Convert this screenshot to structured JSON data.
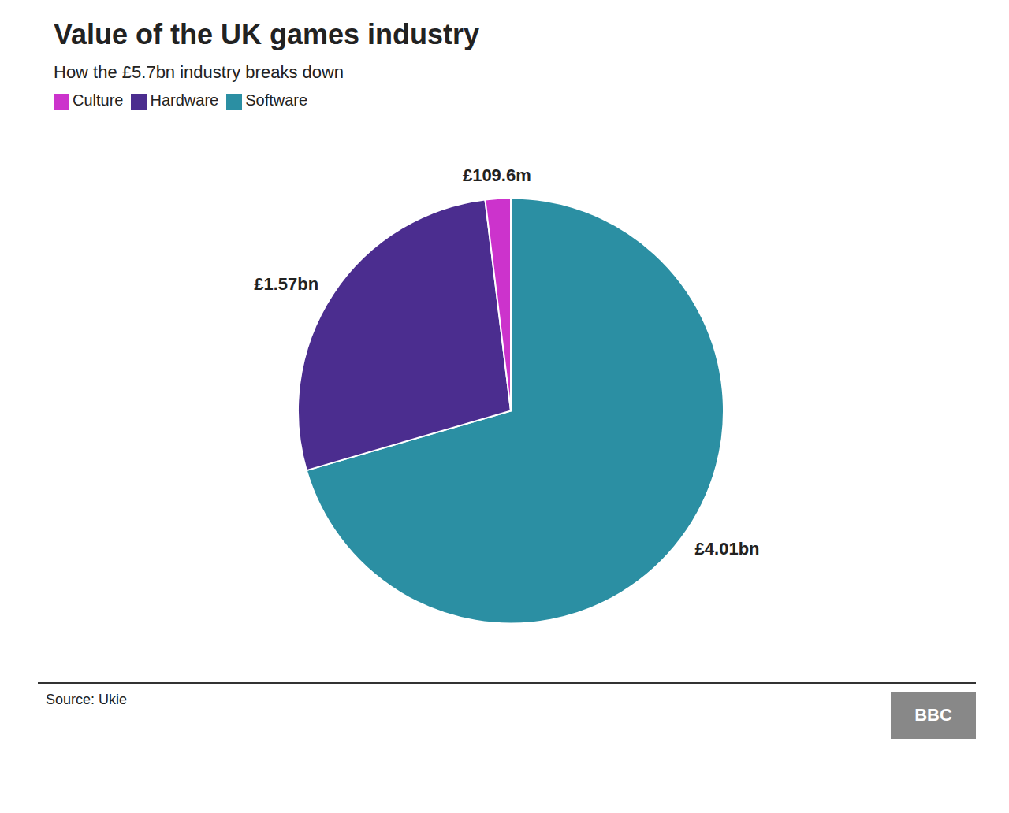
{
  "chart_data": {
    "type": "pie",
    "title": "Value of the UK games industry",
    "subtitle": "How the £5.7bn industry breaks down",
    "categories": [
      "Software",
      "Hardware",
      "Culture"
    ],
    "values": [
      4.01,
      1.57,
      0.1096
    ],
    "value_labels": [
      "£4.01bn",
      "£1.57bn",
      "£109.6m"
    ],
    "data_labels": true,
    "colors": [
      "#2b8fa3",
      "#4b2d8f",
      "#cc33cc"
    ],
    "legend": "top",
    "annotations": [
      "Source: Ukie",
      "BBC"
    ]
  }
}
